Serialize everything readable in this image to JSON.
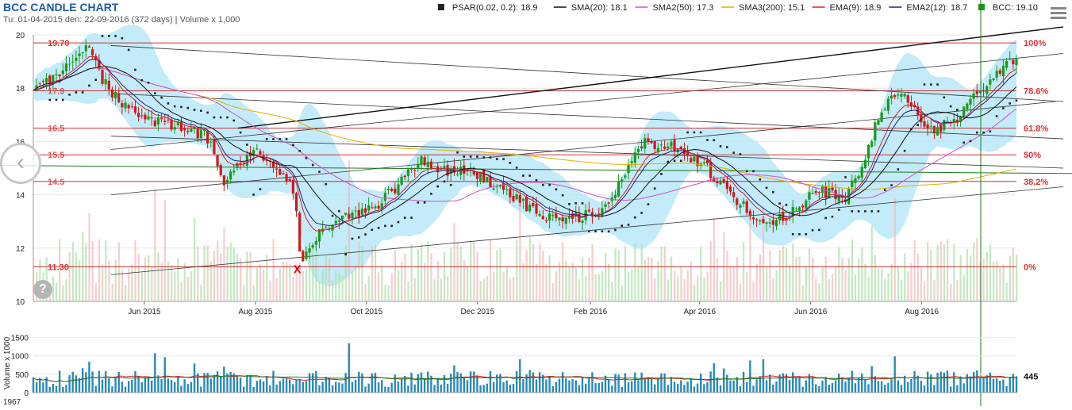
{
  "header": {
    "title": "BCC CANDLE CHART",
    "subtitle": "Tu: 01-04-2015 den: 22-09-2016 (372 days) | Volume x 1,000"
  },
  "legend": [
    {
      "label": "PSAR(0.02, 0.2): 18.9",
      "color": "#222222",
      "marker": "square"
    },
    {
      "label": "SMA(20): 18.1",
      "color": "#111111",
      "marker": "line"
    },
    {
      "label": "SMA2(50): 17.3",
      "color": "#d050d0",
      "marker": "line"
    },
    {
      "label": "SMA3(200): 15.1",
      "color": "#e0b000",
      "marker": "line"
    },
    {
      "label": "EMA(9): 18.9",
      "color": "#d62020",
      "marker": "line"
    },
    {
      "label": "EMA2(12): 18.7",
      "color": "#202080",
      "marker": "line"
    },
    {
      "label": "BCC: 19.10",
      "color": "#1a9a1a",
      "marker": "square"
    }
  ],
  "controls": {
    "nav_glyph": "‹",
    "help_glyph": "?"
  },
  "icons": {
    "nav": "chevron-left-icon",
    "help": "question-icon",
    "menu": "hamburger-menu-icon"
  },
  "colors": {
    "up": "#1a9a1a",
    "down": "#d01818",
    "band": "#b8e8f8",
    "fib_line": "#cc3333",
    "fib_text": "#dd3333",
    "volume_bar": "#2a8ab8",
    "grid": "#e8e8e8"
  },
  "chart_data": [
    {
      "type": "candlestick",
      "title": "BCC CANDLE CHART",
      "ylim": [
        10,
        20
      ],
      "yticks": [
        10,
        12,
        14,
        16,
        18,
        20
      ],
      "date_range": [
        "2015-04-01",
        "2016-09-22"
      ],
      "x_tick_labels": [
        "Jun 2015",
        "Aug 2015",
        "Oct 2015",
        "Dec 2015",
        "Feb 2016",
        "Apr 2016",
        "Jun 2016",
        "Aug 2016"
      ],
      "x_tick_dates": [
        "2015-06-01",
        "2015-08-01",
        "2015-10-01",
        "2015-12-01",
        "2016-02-01",
        "2016-04-01",
        "2016-06-01",
        "2016-08-01"
      ],
      "price_path": {
        "dates": [
          "2015-04-01",
          "2015-04-15",
          "2015-05-01",
          "2015-05-10",
          "2015-05-20",
          "2015-06-05",
          "2015-06-20",
          "2015-07-05",
          "2015-07-15",
          "2015-08-01",
          "2015-08-10",
          "2015-08-22",
          "2015-08-26",
          "2015-09-05",
          "2015-09-20",
          "2015-10-05",
          "2015-10-20",
          "2015-11-01",
          "2015-11-15",
          "2015-12-01",
          "2015-12-20",
          "2016-01-05",
          "2016-01-20",
          "2016-02-10",
          "2016-03-01",
          "2016-03-20",
          "2016-04-05",
          "2016-04-20",
          "2016-05-05",
          "2016-05-20",
          "2016-06-05",
          "2016-06-20",
          "2016-07-01",
          "2016-07-10",
          "2016-07-20",
          "2016-08-05",
          "2016-08-20",
          "2016-09-05",
          "2016-09-22"
        ],
        "closes": [
          18.0,
          18.6,
          19.5,
          18.2,
          17.3,
          16.8,
          16.6,
          16.2,
          14.5,
          15.8,
          15.0,
          14.2,
          11.5,
          12.5,
          13.2,
          13.5,
          14.5,
          15.3,
          14.9,
          14.8,
          14.0,
          13.2,
          13.0,
          13.6,
          16.0,
          15.8,
          15.0,
          13.8,
          13.0,
          13.2,
          14.2,
          13.8,
          15.5,
          17.2,
          17.8,
          16.4,
          16.8,
          18.2,
          19.1
        ]
      },
      "last_close": 19.1,
      "fibonacci_levels": [
        {
          "label": "100%",
          "price_label": "19.70",
          "value": 19.7
        },
        {
          "label": "78.6%",
          "price_label": "17.9",
          "value": 17.9
        },
        {
          "label": "61.8%",
          "price_label": "16.5",
          "value": 16.5
        },
        {
          "label": "50%",
          "price_label": "15.5",
          "value": 15.5
        },
        {
          "label": "38.2%",
          "price_label": "14.5",
          "value": 14.5
        },
        {
          "label": "0%",
          "price_label": "11.30",
          "value": 11.3
        }
      ],
      "swing_low_marker": {
        "date": "2015-08-24",
        "value": 11.3,
        "label": "X"
      }
    },
    {
      "type": "bar",
      "ylabel": "Volume x 1000",
      "ylim": [
        0,
        1967
      ],
      "yticks": [
        0,
        500,
        1000,
        1500
      ],
      "top_label": "1967",
      "last_value": 445,
      "last_value_label": "445"
    }
  ]
}
